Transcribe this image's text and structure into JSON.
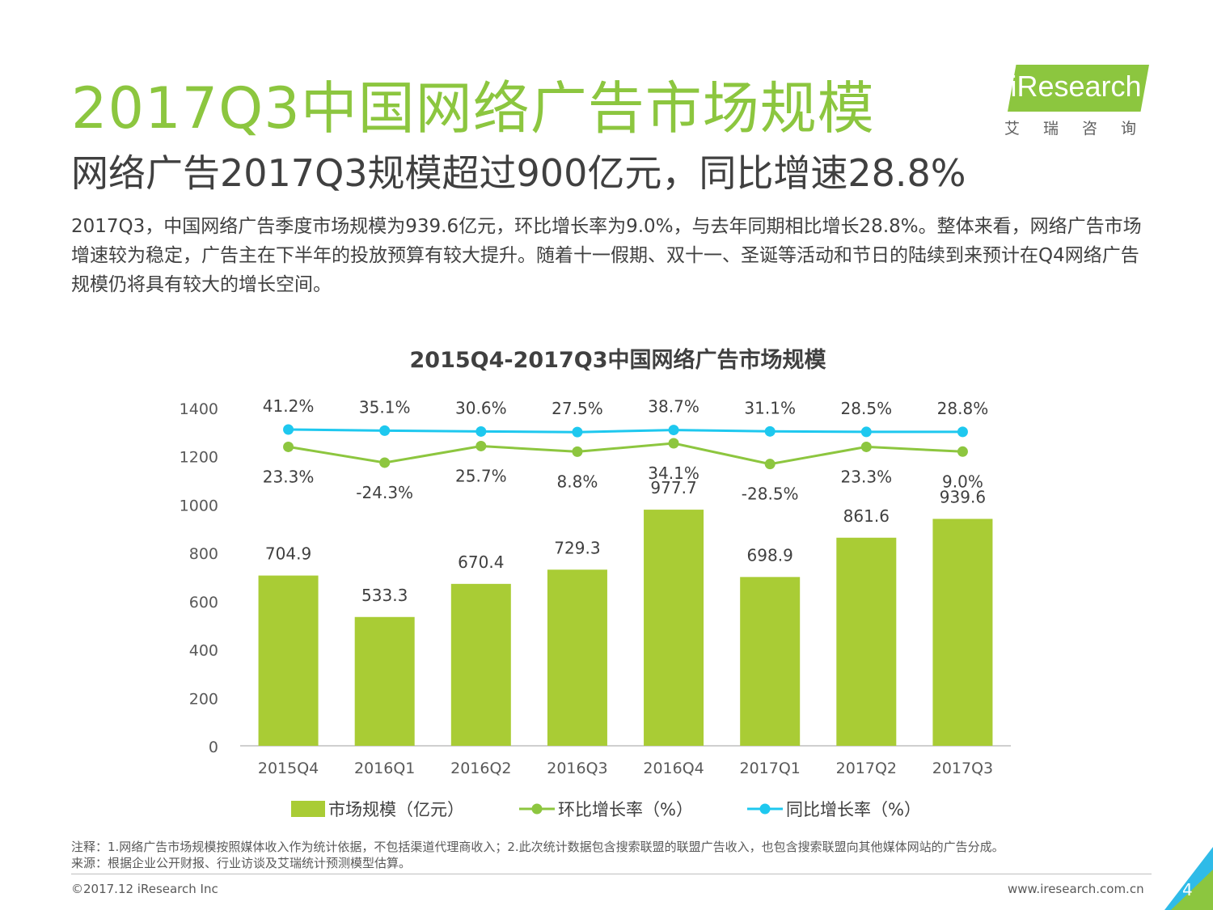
{
  "header": {
    "title": "2017Q3中国网络广告市场规模",
    "subtitle": "网络广告2017Q3规模超过900亿元，同比增速28.8%",
    "summary": "2017Q3，中国网络广告季度市场规模为939.6亿元，环比增长率为9.0%，与去年同期相比增长28.8%。整体来看，网络广告市场增速较为稳定，广告主在下半年的投放预算有较大提升。随着十一假期、双十一、圣诞等活动和节日的陆续到来预计在Q4网络广告规模仍将具有较大的增长空间。"
  },
  "logo": {
    "text": "iResearch",
    "cn": "艾瑞咨询"
  },
  "colors": {
    "brand": "#8cc63f",
    "bar": "#a9cc35",
    "qoq": "#8dc63f",
    "yoy": "#1ec8ef",
    "text": "#404040"
  },
  "chart_data": {
    "type": "bar",
    "title": "2015Q4-2017Q3中国网络广告市场规模",
    "categories": [
      "2015Q4",
      "2016Q1",
      "2016Q2",
      "2016Q3",
      "2016Q4",
      "2017Q1",
      "2017Q2",
      "2017Q3"
    ],
    "ylim": [
      0,
      1400
    ],
    "yticks": [
      0,
      200,
      400,
      600,
      800,
      1000,
      1200,
      1400
    ],
    "series": [
      {
        "name": "市场规模（亿元）",
        "type": "bar",
        "values": [
          704.9,
          533.3,
          670.4,
          729.3,
          977.7,
          698.9,
          861.6,
          939.6
        ]
      },
      {
        "name": "环比增长率（%）",
        "type": "line",
        "values": [
          23.3,
          -24.3,
          25.7,
          8.8,
          34.1,
          -28.5,
          23.3,
          9.0
        ]
      },
      {
        "name": "同比增长率（%）",
        "type": "line",
        "values": [
          41.2,
          35.1,
          30.6,
          27.5,
          38.7,
          31.1,
          28.5,
          28.8
        ]
      }
    ],
    "legend_position": "bottom"
  },
  "footer": {
    "note1": "注释：1.网络广告市场规模按照媒体收入作为统计依据，不包括渠道代理商收入；2.此次统计数据包含搜索联盟的联盟广告收入，也包含搜索联盟向其他媒体网站的广告分成。",
    "note2": "来源：根据企业公开财报、行业访谈及艾瑞统计预测模型估算。",
    "copyright": "©2017.12 iResearch Inc",
    "site": "www.iresearch.com.cn",
    "page": "4"
  }
}
